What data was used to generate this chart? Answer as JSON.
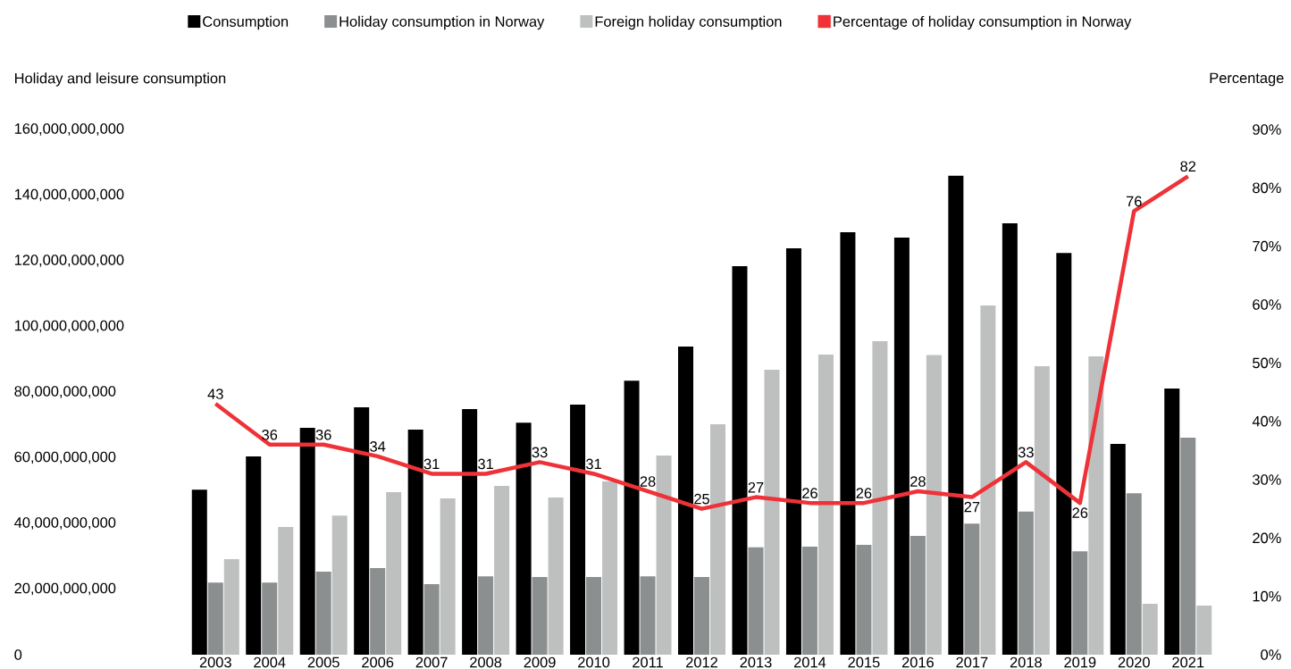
{
  "chart_data": {
    "type": "bar",
    "ylabel": "Holiday and leisure consumption",
    "y2label": "Percentage",
    "categories": [
      "2003",
      "2004",
      "2005",
      "2006",
      "2007",
      "2008",
      "2009",
      "2010",
      "2011",
      "2012",
      "2013",
      "2014",
      "2015",
      "2016",
      "2017",
      "2018",
      "2019",
      "2020",
      "2021"
    ],
    "series": [
      {
        "name": "Consumption",
        "color": "#000000",
        "values": [
          50300000000,
          60400000000,
          69100000000,
          75400000000,
          68600000000,
          74800000000,
          70700000000,
          76200000000,
          83500000000,
          93900000000,
          118400000000,
          123800000000,
          128700000000,
          127100000000,
          145900000000,
          131400000000,
          122400000000,
          64200000000,
          81100000000
        ]
      },
      {
        "name": "Holiday consumption in Norway",
        "color": "#8c8f8f",
        "values": [
          22000000000,
          22000000000,
          25300000000,
          26400000000,
          21500000000,
          23900000000,
          23700000000,
          23700000000,
          23900000000,
          23700000000,
          32700000000,
          32900000000,
          33500000000,
          36200000000,
          39900000000,
          43600000000,
          31500000000,
          49200000000,
          66100000000
        ]
      },
      {
        "name": "Foreign holiday consumption",
        "color": "#bebfbf",
        "values": [
          29100000000,
          38900000000,
          42400000000,
          49500000000,
          47600000000,
          51400000000,
          47900000000,
          52800000000,
          60700000000,
          70200000000,
          86800000000,
          91400000000,
          95500000000,
          91300000000,
          106400000000,
          87900000000,
          90900000000,
          15500000000,
          15000000000
        ]
      },
      {
        "name": "Percentage of holiday consumption in Norway",
        "type": "line",
        "axis": "y2",
        "color": "#ee3237",
        "values": [
          43,
          36,
          36,
          34,
          31,
          31,
          33,
          31,
          28,
          25,
          27,
          26,
          26,
          28,
          27,
          33,
          26,
          76,
          82
        ],
        "value_labels": [
          "43",
          "36",
          "36",
          "34",
          "31",
          "31",
          "33",
          "31",
          "28",
          "25",
          "27",
          "26",
          "26",
          "28",
          "27",
          "33",
          "26",
          "76",
          "82"
        ]
      }
    ],
    "ylim": [
      0,
      160000000000
    ],
    "yticks": [
      {
        "value": 0,
        "label": "0"
      },
      {
        "value": 20000000000,
        "label": "20,000,000,000"
      },
      {
        "value": 40000000000,
        "label": "40,000,000,000"
      },
      {
        "value": 60000000000,
        "label": "60,000,000,000"
      },
      {
        "value": 80000000000,
        "label": "80,000,000,000"
      },
      {
        "value": 100000000000,
        "label": "100,000,000,000"
      },
      {
        "value": 120000000000,
        "label": "120,000,000,000"
      },
      {
        "value": 140000000000,
        "label": "140,000,000,000"
      },
      {
        "value": 160000000000,
        "label": "160,000,000,000"
      }
    ],
    "y2lim": [
      0,
      90
    ],
    "y2ticks": [
      {
        "value": 0,
        "label": "0%"
      },
      {
        "value": 10,
        "label": "10%"
      },
      {
        "value": 20,
        "label": "20%"
      },
      {
        "value": 30,
        "label": "30%"
      },
      {
        "value": 40,
        "label": "40%"
      },
      {
        "value": 50,
        "label": "50%"
      },
      {
        "value": 60,
        "label": "60%"
      },
      {
        "value": 70,
        "label": "70%"
      },
      {
        "value": 80,
        "label": "80%"
      },
      {
        "value": 90,
        "label": "90%"
      }
    ],
    "legend": "top",
    "grid": false,
    "marker": "none"
  }
}
